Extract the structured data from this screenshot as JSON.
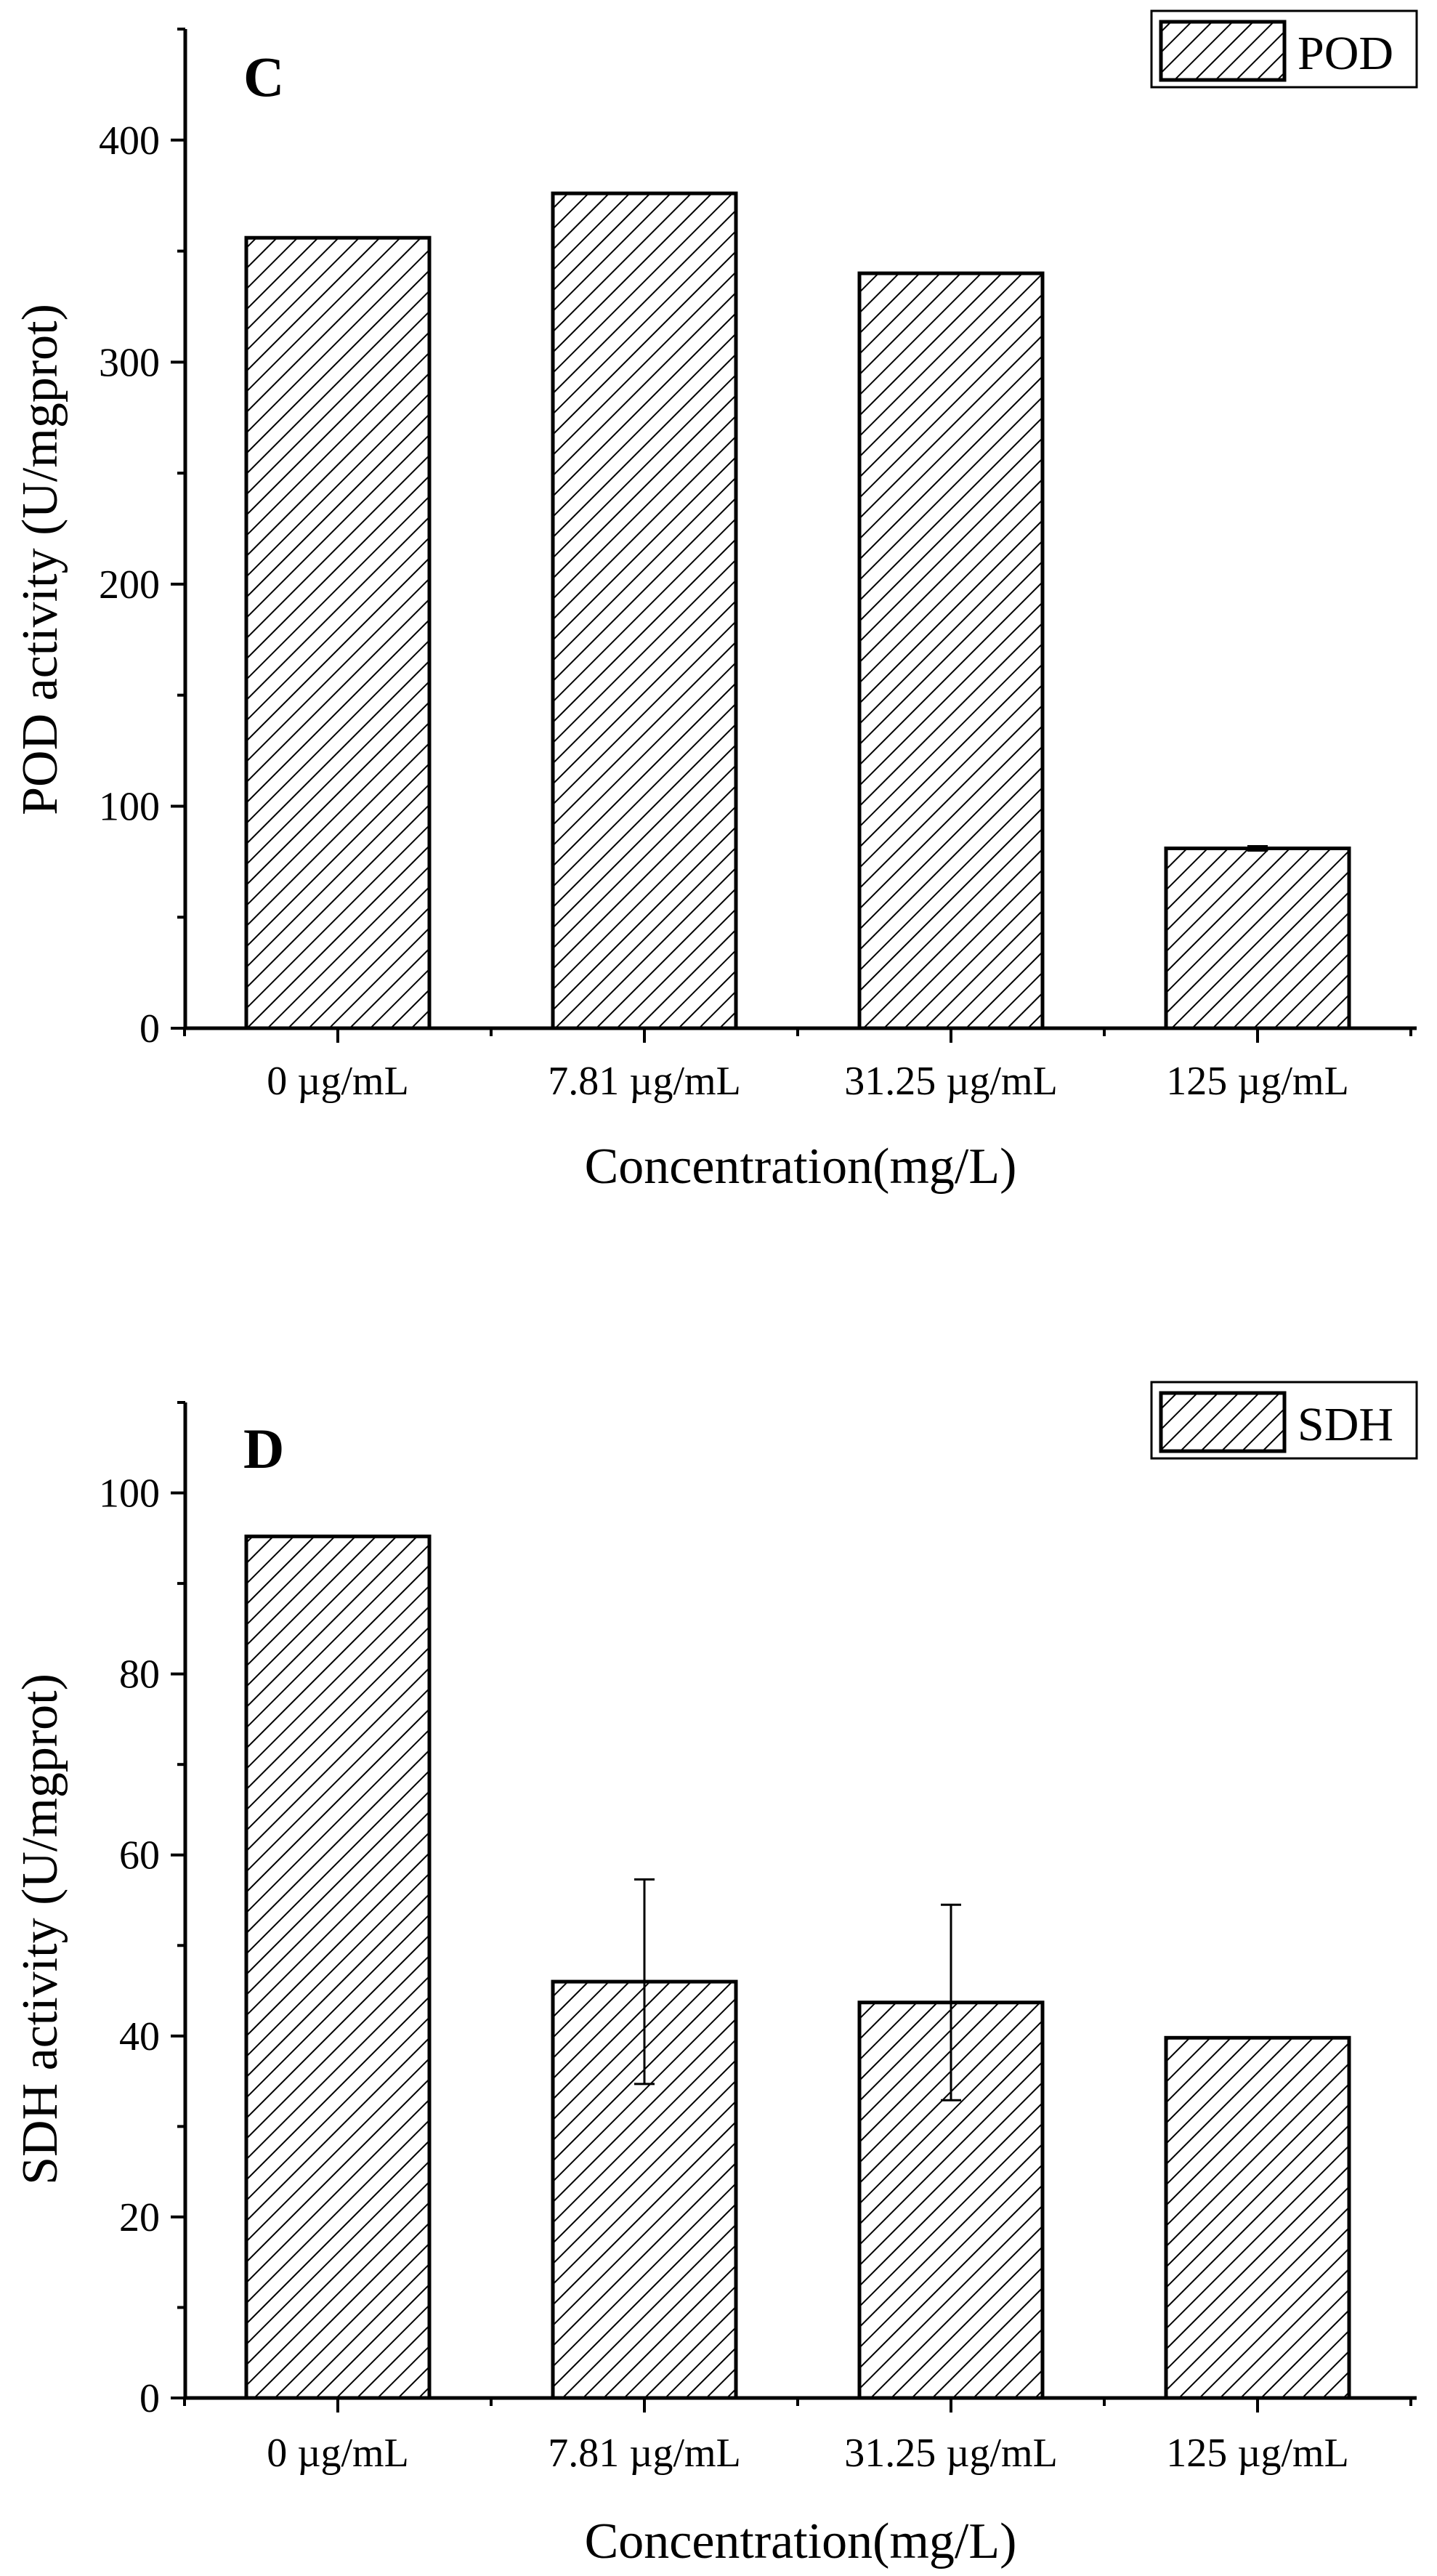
{
  "chart_data": [
    {
      "type": "bar",
      "panel_label": "C",
      "categories": [
        "0 µg/mL",
        "7.81 µg/mL",
        "31.25 µg/mL",
        "125 µg/mL"
      ],
      "series": [
        {
          "name": "POD",
          "values": [
            356,
            376,
            340,
            81
          ],
          "errors": [
            0,
            0,
            0,
            1
          ]
        }
      ],
      "legend": "POD",
      "xlabel": "Concentration(mg/L)",
      "ylabel": "POD activity (U/mgprot)",
      "ylim": [
        0,
        450
      ],
      "yticks": [
        0,
        100,
        200,
        300,
        400
      ],
      "ytick_labels": [
        "0",
        "100",
        "200",
        "300",
        "400"
      ],
      "legend_position": "top-right"
    },
    {
      "type": "bar",
      "panel_label": "D",
      "categories": [
        "0 µg/mL",
        "7.81 µg/mL",
        "31.25 µg/mL",
        "125 µg/mL"
      ],
      "series": [
        {
          "name": "SDH",
          "values": [
            95.2,
            46,
            43.7,
            39.8
          ],
          "errors": [
            0,
            11.3,
            10.8,
            0
          ]
        }
      ],
      "legend": "SDH",
      "xlabel": "Concentration(mg/L)",
      "ylabel": "SDH activity (U/mgprot)",
      "ylim": [
        0,
        110
      ],
      "yticks": [
        0,
        20,
        40,
        60,
        80,
        100
      ],
      "ytick_labels": [
        "0",
        "20",
        "40",
        "60",
        "80",
        "100"
      ],
      "legend_position": "top-right"
    }
  ]
}
